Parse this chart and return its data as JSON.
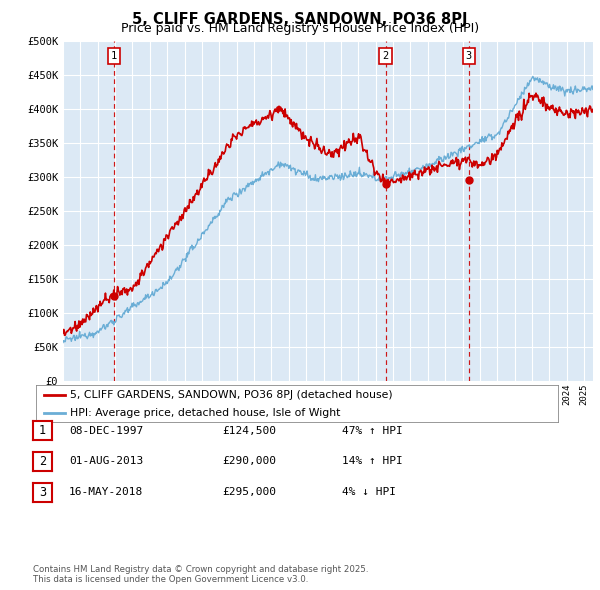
{
  "title": "5, CLIFF GARDENS, SANDOWN, PO36 8PJ",
  "subtitle": "Price paid vs. HM Land Registry's House Price Index (HPI)",
  "ylabel_ticks": [
    "£0",
    "£50K",
    "£100K",
    "£150K",
    "£200K",
    "£250K",
    "£300K",
    "£350K",
    "£400K",
    "£450K",
    "£500K"
  ],
  "ytick_vals": [
    0,
    50000,
    100000,
    150000,
    200000,
    250000,
    300000,
    350000,
    400000,
    450000,
    500000
  ],
  "xmin": 1995.0,
  "xmax": 2025.5,
  "ymin": 0,
  "ymax": 500000,
  "bg_color": "#dce9f5",
  "grid_color": "#ffffff",
  "sale_dates": [
    1997.93,
    2013.58,
    2018.37
  ],
  "sale_prices": [
    124500,
    290000,
    295000
  ],
  "sale_labels": [
    "1",
    "2",
    "3"
  ],
  "vline_color": "#cc0000",
  "hpi_color": "#6baed6",
  "price_color": "#cc0000",
  "legend_entries": [
    "5, CLIFF GARDENS, SANDOWN, PO36 8PJ (detached house)",
    "HPI: Average price, detached house, Isle of Wight"
  ],
  "table_rows": [
    [
      "1",
      "08-DEC-1997",
      "£124,500",
      "47% ↑ HPI"
    ],
    [
      "2",
      "01-AUG-2013",
      "£290,000",
      "14% ↑ HPI"
    ],
    [
      "3",
      "16-MAY-2018",
      "£295,000",
      "4% ↓ HPI"
    ]
  ],
  "footnote": "Contains HM Land Registry data © Crown copyright and database right 2025.\nThis data is licensed under the Open Government Licence v3.0."
}
